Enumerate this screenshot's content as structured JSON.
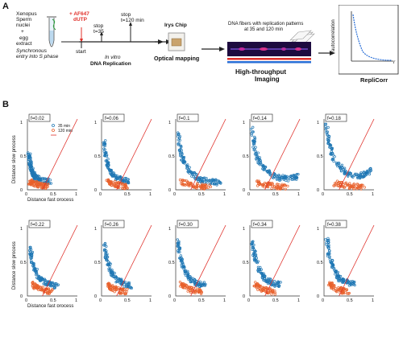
{
  "panel_a": {
    "letter": "A",
    "xenopus": [
      "Xenopus",
      "Sperm",
      "nuclei"
    ],
    "plus": "+",
    "egg_extract": [
      "egg",
      "extract"
    ],
    "synchronous": [
      "Synchronous",
      "entry into S phase"
    ],
    "label_plus": "+ AF647",
    "label_dutp": "dUTP",
    "stop1": [
      "stop",
      "t=35"
    ],
    "stop2": [
      "stop",
      "t=120 min"
    ],
    "start": "start",
    "in_vitro": "In vitro",
    "dna_replication": "DNA Replication",
    "irys_chip": "Irys Chip",
    "optical_mapping": "Optical mapping",
    "fibers_caption": [
      "DNA fibers with replication patterns",
      "at 35 and 120 min"
    ],
    "high_throughput": [
      "High-throughput",
      "Imaging"
    ],
    "autocorr_ylabel": "autocorrelation",
    "autocorr_xlabel": "r",
    "replicorr": "RepliCorr",
    "colors": {
      "arrow": "#222222",
      "fiber": "#2e0f5e",
      "blue": "#2a6fd6",
      "red": "#e0302a"
    }
  },
  "panel_b": {
    "letter": "B",
    "ylabel": "Distance slow process",
    "xlabel": "Distance fast process",
    "legend": [
      {
        "label": "35 min",
        "color": "#1f77b4",
        "marker": "circle"
      },
      {
        "label": "120 min",
        "color": "#e8612c",
        "marker": "circle"
      },
      {
        "label": "",
        "color": "#e0302a",
        "marker": "line"
      }
    ],
    "rows": [
      {
        "f_labels": [
          "f=0.02",
          "f=0.06",
          "f=0.1",
          "f=0.14",
          "f=0.18"
        ]
      },
      {
        "f_labels": [
          "f=0.22",
          "f=0.26",
          "f=0.30",
          "f=0.34",
          "f=0.38"
        ]
      }
    ],
    "ticks": {
      "x": [
        "0",
        "0.5",
        "1"
      ],
      "y": [
        "0",
        "0.5",
        "1"
      ]
    },
    "colors": {
      "blue": "#1f77b4",
      "orange": "#e8612c",
      "diag": "#e0302a"
    }
  },
  "chart_data": [
    {
      "type": "scatter",
      "title": "f=0.02",
      "xlim": [
        0,
        1
      ],
      "ylim": [
        0,
        1.05
      ],
      "xlabel": "Distance fast process",
      "ylabel": "Distance slow process",
      "series": [
        {
          "name": "35 min",
          "x": [
            0.03,
            0.05,
            0.08,
            0.1,
            0.15,
            0.2,
            0.3,
            0.45
          ],
          "y": [
            0.55,
            0.4,
            0.3,
            0.25,
            0.2,
            0.17,
            0.14,
            0.12
          ]
        },
        {
          "name": "120 min",
          "x": [
            0.05,
            0.1,
            0.2,
            0.3,
            0.4
          ],
          "y": [
            0.12,
            0.1,
            0.08,
            0.06,
            0.05
          ]
        }
      ]
    },
    {
      "type": "scatter",
      "title": "f=0.06",
      "xlim": [
        0,
        1
      ],
      "ylim": [
        0,
        1.05
      ],
      "series": [
        {
          "name": "35 min",
          "x": [
            0.05,
            0.1,
            0.15,
            0.25,
            0.4,
            0.55
          ],
          "y": [
            0.75,
            0.45,
            0.3,
            0.2,
            0.15,
            0.13
          ]
        },
        {
          "name": "120 min",
          "x": [
            0.1,
            0.2,
            0.35,
            0.5
          ],
          "y": [
            0.12,
            0.1,
            0.07,
            0.05
          ]
        }
      ]
    },
    {
      "type": "scatter",
      "title": "f=0.1",
      "xlim": [
        0,
        1
      ],
      "ylim": [
        0,
        1.05
      ],
      "series": [
        {
          "name": "35 min",
          "x": [
            0.05,
            0.1,
            0.2,
            0.35,
            0.5,
            0.7,
            0.9
          ],
          "y": [
            0.85,
            0.55,
            0.35,
            0.22,
            0.15,
            0.12,
            0.1
          ]
        },
        {
          "name": "120 min",
          "x": [
            0.1,
            0.3,
            0.5,
            0.7
          ],
          "y": [
            0.12,
            0.08,
            0.05,
            0.04
          ]
        }
      ]
    },
    {
      "type": "scatter",
      "title": "f=0.14",
      "xlim": [
        0,
        1
      ],
      "ylim": [
        0,
        1.05
      ],
      "series": [
        {
          "name": "35 min",
          "x": [
            0.05,
            0.1,
            0.2,
            0.4,
            0.6,
            0.8,
            0.95
          ],
          "y": [
            0.9,
            0.6,
            0.4,
            0.24,
            0.18,
            0.17,
            0.2
          ]
        },
        {
          "name": "120 min",
          "x": [
            0.15,
            0.35,
            0.55,
            0.75
          ],
          "y": [
            0.1,
            0.07,
            0.05,
            0.04
          ]
        }
      ]
    },
    {
      "type": "scatter",
      "title": "f=0.18",
      "xlim": [
        0,
        1
      ],
      "ylim": [
        0,
        1.05
      ],
      "series": [
        {
          "name": "35 min",
          "x": [
            0.05,
            0.1,
            0.2,
            0.4,
            0.6,
            0.8,
            0.95
          ],
          "y": [
            0.95,
            0.7,
            0.45,
            0.28,
            0.2,
            0.22,
            0.3
          ]
        },
        {
          "name": "120 min",
          "x": [
            0.2,
            0.4,
            0.6,
            0.8
          ],
          "y": [
            0.1,
            0.07,
            0.05,
            0.05
          ]
        }
      ]
    },
    {
      "type": "scatter",
      "title": "f=0.22",
      "xlim": [
        0,
        1
      ],
      "ylim": [
        0,
        1.05
      ],
      "series": [
        {
          "name": "35 min",
          "x": [
            0.05,
            0.1,
            0.2,
            0.3,
            0.45,
            0.6
          ],
          "y": [
            0.75,
            0.5,
            0.32,
            0.22,
            0.17,
            0.14
          ]
        },
        {
          "name": "120 min",
          "x": [
            0.1,
            0.2,
            0.35,
            0.5
          ],
          "y": [
            0.18,
            0.12,
            0.08,
            0.06
          ]
        }
      ]
    },
    {
      "type": "scatter",
      "title": "f=0.26",
      "xlim": [
        0,
        1
      ],
      "ylim": [
        0,
        1.05
      ],
      "series": [
        {
          "name": "35 min",
          "x": [
            0.05,
            0.1,
            0.2,
            0.3,
            0.45,
            0.6
          ],
          "y": [
            0.8,
            0.55,
            0.35,
            0.24,
            0.18,
            0.15
          ]
        },
        {
          "name": "120 min",
          "x": [
            0.1,
            0.2,
            0.35,
            0.5
          ],
          "y": [
            0.18,
            0.12,
            0.08,
            0.06
          ]
        }
      ]
    },
    {
      "type": "scatter",
      "title": "f=0.30",
      "xlim": [
        0,
        1
      ],
      "ylim": [
        0,
        1.05
      ],
      "series": [
        {
          "name": "35 min",
          "x": [
            0.05,
            0.1,
            0.2,
            0.3,
            0.45,
            0.6
          ],
          "y": [
            0.82,
            0.55,
            0.35,
            0.24,
            0.18,
            0.16
          ]
        },
        {
          "name": "120 min",
          "x": [
            0.1,
            0.2,
            0.35,
            0.5
          ],
          "y": [
            0.18,
            0.12,
            0.08,
            0.06
          ]
        }
      ]
    },
    {
      "type": "scatter",
      "title": "f=0.34",
      "xlim": [
        0,
        1
      ],
      "ylim": [
        0,
        1.05
      ],
      "series": [
        {
          "name": "35 min",
          "x": [
            0.05,
            0.1,
            0.2,
            0.3,
            0.45,
            0.6
          ],
          "y": [
            0.85,
            0.58,
            0.37,
            0.25,
            0.19,
            0.17
          ]
        },
        {
          "name": "120 min",
          "x": [
            0.1,
            0.2,
            0.35,
            0.5
          ],
          "y": [
            0.18,
            0.12,
            0.08,
            0.06
          ]
        }
      ]
    },
    {
      "type": "scatter",
      "title": "f=0.38",
      "xlim": [
        0,
        1
      ],
      "ylim": [
        0,
        1.05
      ],
      "series": [
        {
          "name": "35 min",
          "x": [
            0.05,
            0.1,
            0.2,
            0.3,
            0.45,
            0.6
          ],
          "y": [
            0.88,
            0.6,
            0.38,
            0.26,
            0.2,
            0.18
          ]
        },
        {
          "name": "120 min",
          "x": [
            0.1,
            0.2,
            0.35,
            0.5
          ],
          "y": [
            0.18,
            0.12,
            0.08,
            0.06
          ]
        }
      ]
    }
  ]
}
